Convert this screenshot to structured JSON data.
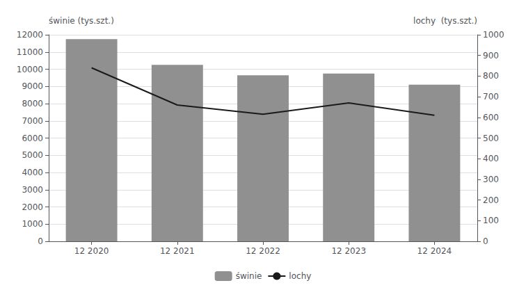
{
  "chart_data": {
    "type": "bar",
    "categories": [
      "12 2020",
      "12 2021",
      "12 2022",
      "12 2023",
      "12 2024"
    ],
    "series": [
      {
        "name": "świnie",
        "type": "bar",
        "color": "#909090",
        "values": [
          11750,
          10250,
          9650,
          9750,
          9100
        ]
      },
      {
        "name": "lochy",
        "type": "line",
        "color": "#1a1a1a",
        "axis": "y2",
        "values": [
          840,
          660,
          615,
          670,
          610
        ]
      }
    ],
    "ylabel": "świnie (tys.szt.)",
    "y2label": "lochy  (tys.szt.)",
    "ylim": [
      0,
      12000
    ],
    "yticks": [
      0,
      1000,
      2000,
      3000,
      4000,
      5000,
      6000,
      7000,
      8000,
      9000,
      10000,
      11000,
      12000
    ],
    "y2lim": [
      0,
      1000
    ],
    "y2ticks": [
      0,
      100,
      200,
      300,
      400,
      500,
      600,
      700,
      800,
      900,
      1000
    ],
    "grid": true,
    "legend": "bottom"
  }
}
